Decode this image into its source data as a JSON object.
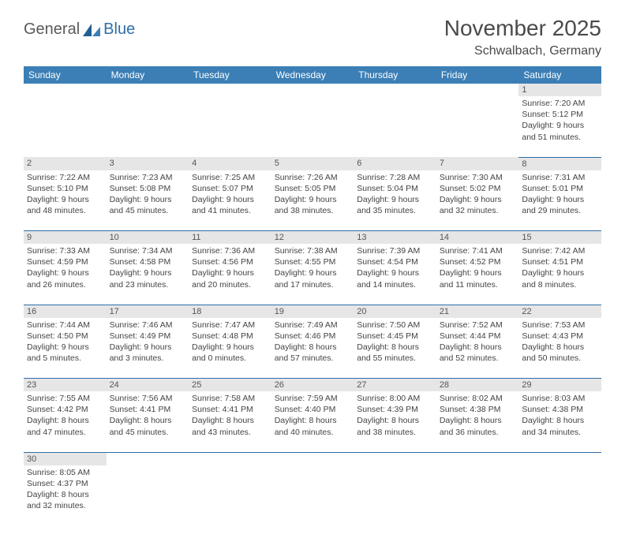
{
  "brand": {
    "name_a": "General",
    "name_b": "Blue"
  },
  "title": "November 2025",
  "location": "Schwalbach, Germany",
  "day_headers": [
    "Sunday",
    "Monday",
    "Tuesday",
    "Wednesday",
    "Thursday",
    "Friday",
    "Saturday"
  ],
  "colors": {
    "header_bg": "#3b7fb6",
    "row_border": "#2f6fa7",
    "daynum_bg": "#e6e6e6",
    "text": "#444444"
  },
  "weeks": [
    {
      "nums": [
        "",
        "",
        "",
        "",
        "",
        "",
        "1"
      ],
      "cells": [
        null,
        null,
        null,
        null,
        null,
        null,
        {
          "sunrise": "Sunrise: 7:20 AM",
          "sunset": "Sunset: 5:12 PM",
          "day1": "Daylight: 9 hours",
          "day2": "and 51 minutes."
        }
      ]
    },
    {
      "nums": [
        "2",
        "3",
        "4",
        "5",
        "6",
        "7",
        "8"
      ],
      "cells": [
        {
          "sunrise": "Sunrise: 7:22 AM",
          "sunset": "Sunset: 5:10 PM",
          "day1": "Daylight: 9 hours",
          "day2": "and 48 minutes."
        },
        {
          "sunrise": "Sunrise: 7:23 AM",
          "sunset": "Sunset: 5:08 PM",
          "day1": "Daylight: 9 hours",
          "day2": "and 45 minutes."
        },
        {
          "sunrise": "Sunrise: 7:25 AM",
          "sunset": "Sunset: 5:07 PM",
          "day1": "Daylight: 9 hours",
          "day2": "and 41 minutes."
        },
        {
          "sunrise": "Sunrise: 7:26 AM",
          "sunset": "Sunset: 5:05 PM",
          "day1": "Daylight: 9 hours",
          "day2": "and 38 minutes."
        },
        {
          "sunrise": "Sunrise: 7:28 AM",
          "sunset": "Sunset: 5:04 PM",
          "day1": "Daylight: 9 hours",
          "day2": "and 35 minutes."
        },
        {
          "sunrise": "Sunrise: 7:30 AM",
          "sunset": "Sunset: 5:02 PM",
          "day1": "Daylight: 9 hours",
          "day2": "and 32 minutes."
        },
        {
          "sunrise": "Sunrise: 7:31 AM",
          "sunset": "Sunset: 5:01 PM",
          "day1": "Daylight: 9 hours",
          "day2": "and 29 minutes."
        }
      ]
    },
    {
      "nums": [
        "9",
        "10",
        "11",
        "12",
        "13",
        "14",
        "15"
      ],
      "cells": [
        {
          "sunrise": "Sunrise: 7:33 AM",
          "sunset": "Sunset: 4:59 PM",
          "day1": "Daylight: 9 hours",
          "day2": "and 26 minutes."
        },
        {
          "sunrise": "Sunrise: 7:34 AM",
          "sunset": "Sunset: 4:58 PM",
          "day1": "Daylight: 9 hours",
          "day2": "and 23 minutes."
        },
        {
          "sunrise": "Sunrise: 7:36 AM",
          "sunset": "Sunset: 4:56 PM",
          "day1": "Daylight: 9 hours",
          "day2": "and 20 minutes."
        },
        {
          "sunrise": "Sunrise: 7:38 AM",
          "sunset": "Sunset: 4:55 PM",
          "day1": "Daylight: 9 hours",
          "day2": "and 17 minutes."
        },
        {
          "sunrise": "Sunrise: 7:39 AM",
          "sunset": "Sunset: 4:54 PM",
          "day1": "Daylight: 9 hours",
          "day2": "and 14 minutes."
        },
        {
          "sunrise": "Sunrise: 7:41 AM",
          "sunset": "Sunset: 4:52 PM",
          "day1": "Daylight: 9 hours",
          "day2": "and 11 minutes."
        },
        {
          "sunrise": "Sunrise: 7:42 AM",
          "sunset": "Sunset: 4:51 PM",
          "day1": "Daylight: 9 hours",
          "day2": "and 8 minutes."
        }
      ]
    },
    {
      "nums": [
        "16",
        "17",
        "18",
        "19",
        "20",
        "21",
        "22"
      ],
      "cells": [
        {
          "sunrise": "Sunrise: 7:44 AM",
          "sunset": "Sunset: 4:50 PM",
          "day1": "Daylight: 9 hours",
          "day2": "and 5 minutes."
        },
        {
          "sunrise": "Sunrise: 7:46 AM",
          "sunset": "Sunset: 4:49 PM",
          "day1": "Daylight: 9 hours",
          "day2": "and 3 minutes."
        },
        {
          "sunrise": "Sunrise: 7:47 AM",
          "sunset": "Sunset: 4:48 PM",
          "day1": "Daylight: 9 hours",
          "day2": "and 0 minutes."
        },
        {
          "sunrise": "Sunrise: 7:49 AM",
          "sunset": "Sunset: 4:46 PM",
          "day1": "Daylight: 8 hours",
          "day2": "and 57 minutes."
        },
        {
          "sunrise": "Sunrise: 7:50 AM",
          "sunset": "Sunset: 4:45 PM",
          "day1": "Daylight: 8 hours",
          "day2": "and 55 minutes."
        },
        {
          "sunrise": "Sunrise: 7:52 AM",
          "sunset": "Sunset: 4:44 PM",
          "day1": "Daylight: 8 hours",
          "day2": "and 52 minutes."
        },
        {
          "sunrise": "Sunrise: 7:53 AM",
          "sunset": "Sunset: 4:43 PM",
          "day1": "Daylight: 8 hours",
          "day2": "and 50 minutes."
        }
      ]
    },
    {
      "nums": [
        "23",
        "24",
        "25",
        "26",
        "27",
        "28",
        "29"
      ],
      "cells": [
        {
          "sunrise": "Sunrise: 7:55 AM",
          "sunset": "Sunset: 4:42 PM",
          "day1": "Daylight: 8 hours",
          "day2": "and 47 minutes."
        },
        {
          "sunrise": "Sunrise: 7:56 AM",
          "sunset": "Sunset: 4:41 PM",
          "day1": "Daylight: 8 hours",
          "day2": "and 45 minutes."
        },
        {
          "sunrise": "Sunrise: 7:58 AM",
          "sunset": "Sunset: 4:41 PM",
          "day1": "Daylight: 8 hours",
          "day2": "and 43 minutes."
        },
        {
          "sunrise": "Sunrise: 7:59 AM",
          "sunset": "Sunset: 4:40 PM",
          "day1": "Daylight: 8 hours",
          "day2": "and 40 minutes."
        },
        {
          "sunrise": "Sunrise: 8:00 AM",
          "sunset": "Sunset: 4:39 PM",
          "day1": "Daylight: 8 hours",
          "day2": "and 38 minutes."
        },
        {
          "sunrise": "Sunrise: 8:02 AM",
          "sunset": "Sunset: 4:38 PM",
          "day1": "Daylight: 8 hours",
          "day2": "and 36 minutes."
        },
        {
          "sunrise": "Sunrise: 8:03 AM",
          "sunset": "Sunset: 4:38 PM",
          "day1": "Daylight: 8 hours",
          "day2": "and 34 minutes."
        }
      ]
    },
    {
      "nums": [
        "30",
        "",
        "",
        "",
        "",
        "",
        ""
      ],
      "cells": [
        {
          "sunrise": "Sunrise: 8:05 AM",
          "sunset": "Sunset: 4:37 PM",
          "day1": "Daylight: 8 hours",
          "day2": "and 32 minutes."
        },
        null,
        null,
        null,
        null,
        null,
        null
      ]
    }
  ]
}
